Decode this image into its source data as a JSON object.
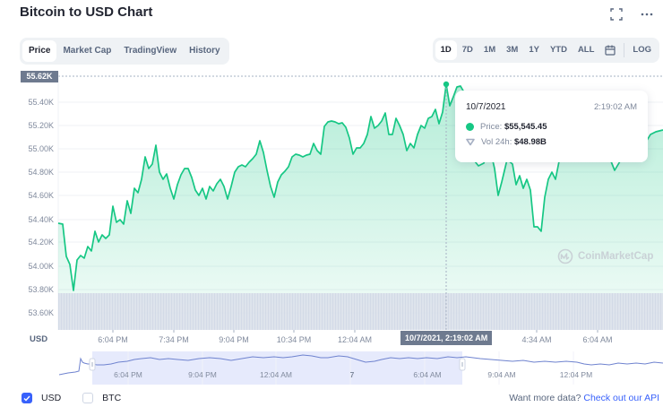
{
  "header": {
    "title": "Bitcoin to USD Chart",
    "icons": [
      "fullscreen-icon",
      "more-icon"
    ]
  },
  "tabs": [
    {
      "label": "Price",
      "active": true
    },
    {
      "label": "Market Cap",
      "active": false
    },
    {
      "label": "TradingView",
      "active": false
    },
    {
      "label": "History",
      "active": false
    }
  ],
  "ranges": [
    {
      "label": "1D",
      "active": true
    },
    {
      "label": "7D",
      "active": false
    },
    {
      "label": "1M",
      "active": false
    },
    {
      "label": "3M",
      "active": false
    },
    {
      "label": "1Y",
      "active": false
    },
    {
      "label": "YTD",
      "active": false
    },
    {
      "label": "ALL",
      "active": false
    }
  ],
  "log_label": "LOG",
  "calendar_icon": "calendar-icon",
  "colors": {
    "line": "#16c784",
    "volume": "#cfd6e4",
    "navigator_line": "#6f83cf",
    "navigator_fill": "#e2e6fb",
    "accent": "#3861fb"
  },
  "axis": {
    "y_current": "55.62K",
    "y_ticks": [
      "55.40K",
      "55.20K",
      "55.00K",
      "54.80K",
      "54.60K",
      "54.40K",
      "54.20K",
      "54.00K",
      "53.80K",
      "53.60K"
    ],
    "x_ticks": [
      "6:04 PM",
      "7:34 PM",
      "9:04 PM",
      "10:34 PM",
      "12:04 AM",
      "4:34 AM",
      "6:04 AM"
    ],
    "x_current": "10/7/2021, 2:19:02 AM",
    "currency_label": "USD"
  },
  "tooltip": {
    "date": "10/7/2021",
    "time": "2:19:02 AM",
    "price_label": "Price:",
    "price_value": "$55,545.45",
    "vol_label": "Vol 24h:",
    "vol_value": "$48.98B"
  },
  "watermark": "CoinMarketCap",
  "navigator": {
    "labels": [
      "6:04 PM",
      "9:04 PM",
      "12:04 AM",
      "7",
      "6:04 AM",
      "9:04 AM",
      "12:04 PM"
    ]
  },
  "footer": {
    "usd_label": "USD",
    "usd_checked": true,
    "btc_label": "BTC",
    "btc_checked": false,
    "api_prefix": "Want more data?",
    "api_link": "Check out our API"
  },
  "chart_data": {
    "type": "area",
    "title": "Bitcoin to USD Chart",
    "xlabel": "",
    "ylabel": "USD",
    "ylim": [
      53.5,
      55.7
    ],
    "y_unit": "K USD",
    "x_tick_labels": [
      "6:04 PM",
      "7:34 PM",
      "9:04 PM",
      "10:34 PM",
      "12:04 AM",
      "4:34 AM",
      "6:04 AM"
    ],
    "grid": true,
    "legend": "none",
    "series": [
      {
        "name": "Price",
        "x": [
          "~5:05 PM",
          "~5:20 PM",
          "~5:35 PM",
          "~5:50 PM",
          "6:04 PM",
          "~6:20 PM",
          "~6:35 PM",
          "~6:50 PM",
          "~7:05 PM",
          "~7:20 PM",
          "7:34 PM",
          "~7:50 PM",
          "~8:05 PM",
          "~8:20 PM",
          "~8:35 PM",
          "~8:50 PM",
          "9:04 PM",
          "~9:20 PM",
          "~9:35 PM",
          "~9:50 PM",
          "~10:05 PM",
          "~10:20 PM",
          "10:34 PM",
          "~10:50 PM",
          "~11:05 PM",
          "~11:20 PM",
          "~11:35 PM",
          "~11:50 PM",
          "12:04 AM",
          "~12:20 AM",
          "~12:35 AM",
          "~12:50 AM",
          "~1:05 AM",
          "~1:20 AM",
          "~1:35 AM",
          "~1:50 AM",
          "~2:05 AM",
          "2:19 AM",
          "~2:35 AM",
          "~2:50 AM",
          "~3:05 AM",
          "~3:20 AM",
          "~3:35 AM",
          "~3:50 AM",
          "~4:05 AM",
          "~4:20 AM",
          "4:34 AM",
          "~4:50 AM",
          "~5:05 AM",
          "~5:20 AM",
          "~5:35 AM",
          "~5:50 AM",
          "6:04 AM",
          "~6:20 AM",
          "~6:35 AM",
          "~6:50 AM"
        ],
        "values": [
          54.37,
          54.35,
          53.8,
          54.05,
          54.1,
          54.15,
          54.25,
          54.22,
          54.45,
          54.38,
          54.55,
          54.67,
          54.62,
          54.58,
          54.72,
          54.68,
          54.92,
          54.77,
          54.65,
          54.64,
          54.82,
          54.8,
          54.93,
          54.82,
          55.08,
          55.05,
          55.07,
          54.9,
          55.03,
          55.25,
          55.13,
          55.22,
          55.14,
          55.23,
          55.05,
          55.14,
          55.25,
          55.545,
          55.38,
          55.5,
          55.2,
          54.8,
          54.85,
          54.62,
          54.72,
          54.6,
          54.33,
          54.48,
          54.75,
          54.95,
          55.02,
          55.05,
          54.88,
          54.97,
          55.1,
          55.14
        ]
      }
    ],
    "highlight": {
      "x": "10/7/2021, 2:19:02 AM",
      "price": 55545.45,
      "vol_24h": "48.98B"
    }
  }
}
